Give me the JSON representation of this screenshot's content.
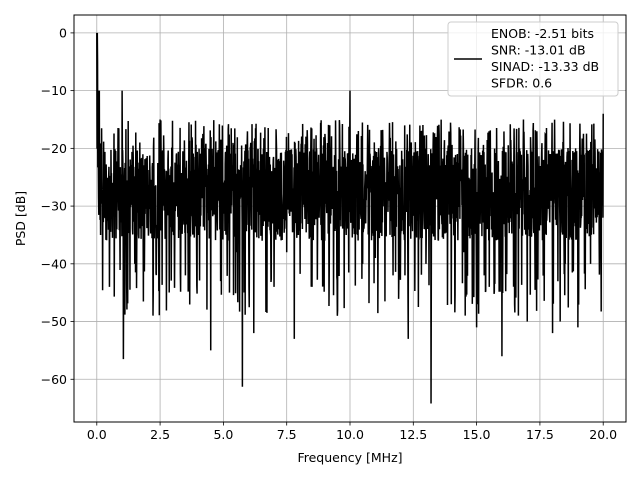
{
  "chart_data": {
    "type": "line",
    "title": "",
    "xlabel": "Frequency [MHz]",
    "ylabel": "PSD [dB]",
    "xlim": [
      -0.9,
      20.9
    ],
    "ylim": [
      -67.4,
      3.1
    ],
    "xticks": [
      0.0,
      2.5,
      5.0,
      7.5,
      10.0,
      12.5,
      15.0,
      17.5,
      20.0
    ],
    "xtick_labels": [
      "0.0",
      "2.5",
      "5.0",
      "7.5",
      "10.0",
      "12.5",
      "15.0",
      "17.5",
      "20.0"
    ],
    "yticks": [
      0,
      -10,
      -20,
      -30,
      -40,
      -50,
      -60
    ],
    "ytick_labels": [
      "0",
      "−10",
      "−20",
      "−30",
      "−40",
      "−50",
      "−60"
    ],
    "grid": true,
    "legend_position": "upper right",
    "series": [
      {
        "name": "ENOB: -2.51 bits\nSNR: -13.01 dB\nSINAD: -13.33 dB\nSFDR: 0.6",
        "color": "#000000",
        "x": [
          0.0,
          0.02,
          0.05,
          0.1,
          0.15,
          0.2,
          0.3,
          0.4,
          0.5,
          0.7,
          1.0,
          1.05,
          1.2,
          1.5,
          2.0,
          2.5,
          3.0,
          3.5,
          4.0,
          4.5,
          5.0,
          5.5,
          5.75,
          6.0,
          6.2,
          6.5,
          7.0,
          7.5,
          7.8,
          8.0,
          8.5,
          9.0,
          9.5,
          10.0,
          10.3,
          10.5,
          11.0,
          11.5,
          11.7,
          12.0,
          12.3,
          12.5,
          13.0,
          13.2,
          13.5,
          14.0,
          14.5,
          15.0,
          15.3,
          15.5,
          16.0,
          16.2,
          16.5,
          17.0,
          17.5,
          18.0,
          18.3,
          18.5,
          19.0,
          19.5,
          20.0
        ],
        "y": [
          -3,
          0,
          -10,
          -20,
          -35,
          -25,
          -32,
          -26,
          -44,
          -28,
          -30,
          -56.5,
          -33,
          -40,
          -29,
          -40,
          -31,
          -42,
          -35,
          -55,
          -30,
          -38,
          -61.3,
          -34,
          -52,
          -30,
          -44,
          -38,
          -53,
          -31,
          -44,
          -36,
          -49,
          -30,
          -35,
          -40,
          -39,
          -31,
          -42,
          -35,
          -53,
          -29,
          -40,
          -64.2,
          -31,
          -47,
          -38,
          -51,
          -42,
          -44,
          -56,
          -30,
          -47,
          -50,
          -33,
          -52,
          -50,
          -40,
          -51,
          -40,
          -32
        ]
      }
    ],
    "noise_envelope": {
      "floor_db": -28,
      "spread_db": 8,
      "upper_cap_db": -15,
      "lower_dips_db": -45
    },
    "spikes": [
      {
        "x": 0.0,
        "y": 0
      },
      {
        "x": 0.03,
        "y": -5
      },
      {
        "x": 0.1,
        "y": -10
      },
      {
        "x": 1.0,
        "y": -10
      },
      {
        "x": 10.0,
        "y": -10
      },
      {
        "x": 20.0,
        "y": -14
      },
      {
        "x": 2.5,
        "y": -15
      },
      {
        "x": 9.2,
        "y": -16
      },
      {
        "x": 12.8,
        "y": -17
      }
    ]
  }
}
